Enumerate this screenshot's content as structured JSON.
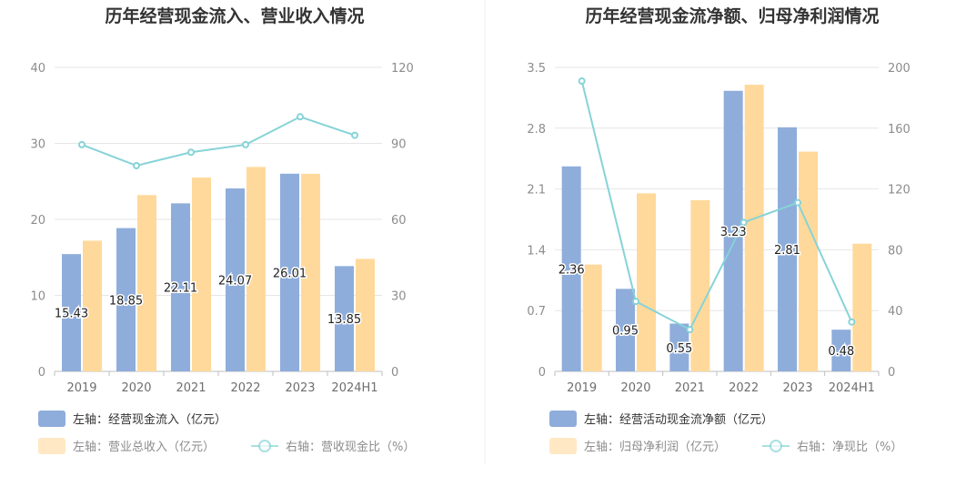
{
  "colors": {
    "bar_blue": "#8eaddb",
    "bar_orange": "#ffd99b",
    "line": "#86d3d8",
    "grid": "#e6e6e6",
    "axis": "#bfbfbf",
    "divider": "#eeeeee"
  },
  "chart_data": [
    {
      "type": "bar",
      "title": "历年经营现金流入、营业收入情况",
      "categories": [
        "2019",
        "2020",
        "2021",
        "2022",
        "2023",
        "2024H1"
      ],
      "left_axis": {
        "min": 0,
        "max": 40,
        "ticks": [
          "0",
          "10",
          "20",
          "30",
          "40"
        ]
      },
      "right_axis": {
        "min": 0,
        "max": 120,
        "ticks": [
          "0",
          "30",
          "60",
          "90",
          "120"
        ]
      },
      "series": [
        {
          "name": "左轴：经营现金流入（亿元）",
          "type": "bar",
          "axis": "left",
          "values": [
            15.43,
            18.85,
            22.11,
            24.07,
            26.01,
            13.85
          ],
          "labels": [
            "15.43",
            "18.85",
            "22.11",
            "24.07",
            "26.01",
            "13.85"
          ]
        },
        {
          "name": "左轴：营业总收入（亿元）",
          "type": "bar",
          "axis": "left",
          "values": [
            17.2,
            23.2,
            25.5,
            26.9,
            26.0,
            14.8
          ]
        },
        {
          "name": "右轴：营收现金比（%）",
          "type": "line",
          "axis": "right",
          "values": [
            89.5,
            81.2,
            86.5,
            89.5,
            100.5,
            93.2
          ]
        }
      ],
      "grid": true,
      "legend_position": "bottom-left"
    },
    {
      "type": "bar",
      "title": "历年经营现金流净额、归母净利润情况",
      "categories": [
        "2019",
        "2020",
        "2021",
        "2022",
        "2023",
        "2024H1"
      ],
      "left_axis": {
        "min": 0,
        "max": 3.5,
        "ticks": [
          "0",
          "0.7",
          "1.4",
          "2.1",
          "2.8",
          "3.5"
        ]
      },
      "right_axis": {
        "min": 0,
        "max": 200,
        "ticks": [
          "0",
          "40",
          "80",
          "120",
          "160",
          "200"
        ]
      },
      "series": [
        {
          "name": "左轴：经营活动现金流净额（亿元）",
          "type": "bar",
          "axis": "left",
          "values": [
            2.36,
            0.95,
            0.55,
            3.23,
            2.81,
            0.48
          ],
          "labels": [
            "2.36",
            "0.95",
            "0.55",
            "3.23",
            "2.81",
            "0.48"
          ]
        },
        {
          "name": "左轴：归母净利润（亿元）",
          "type": "bar",
          "axis": "left",
          "values": [
            1.23,
            2.05,
            1.97,
            3.3,
            2.53,
            1.47
          ]
        },
        {
          "name": "右轴：净现比（%）",
          "type": "line",
          "axis": "right",
          "values": [
            191,
            46,
            27.5,
            98,
            111,
            32.5
          ]
        }
      ],
      "grid": true,
      "legend_position": "bottom-left"
    }
  ]
}
